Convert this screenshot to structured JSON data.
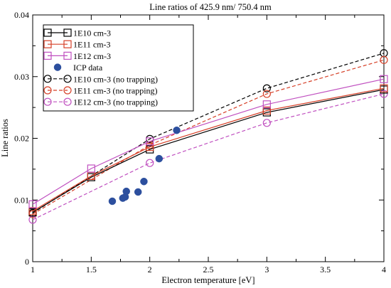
{
  "chart_data": {
    "type": "line",
    "title": "Line ratios of 425.9 nm/ 750.4 nm",
    "xlabel": "Electron temperature [eV]",
    "ylabel": "Line ratios",
    "xlim": [
      1,
      4
    ],
    "ylim": [
      0,
      0.04
    ],
    "x_ticks": [
      1,
      1.5,
      2,
      2.5,
      3,
      3.5,
      4
    ],
    "x_tick_labels": [
      "1",
      "1.5",
      "2",
      "2.5",
      "3",
      "3.5",
      "4"
    ],
    "y_ticks": [
      0,
      0.01,
      0.02,
      0.03,
      0.04
    ],
    "y_tick_labels": [
      "0",
      "0.01",
      "0.02",
      "0.03",
      "0.04"
    ],
    "grid": false,
    "legend_position": "top-left",
    "series": [
      {
        "name": "1E10 cm-3",
        "color": "#000000",
        "line": "solid",
        "marker": "square",
        "x": [
          1,
          1.5,
          2,
          3,
          4
        ],
        "y": [
          0.008,
          0.0137,
          0.0182,
          0.0242,
          0.0279
        ]
      },
      {
        "name": "1E11 cm-3",
        "color": "#d64028",
        "line": "solid",
        "marker": "square",
        "x": [
          1,
          1.5,
          2,
          3,
          4
        ],
        "y": [
          0.0082,
          0.0139,
          0.0186,
          0.0245,
          0.0281
        ]
      },
      {
        "name": "1E12 cm-3",
        "color": "#c050c0",
        "line": "solid",
        "marker": "square",
        "x": [
          1,
          1.5,
          2,
          3,
          4
        ],
        "y": [
          0.0093,
          0.0151,
          0.0195,
          0.0255,
          0.0296
        ]
      },
      {
        "name": "ICP data",
        "color": "#2c4f9e",
        "line": "none",
        "marker": "filled-circle",
        "x": [
          1.68,
          1.77,
          1.79,
          1.8,
          1.9,
          1.95,
          2.08,
          2.23
        ],
        "y": [
          0.0098,
          0.0103,
          0.0105,
          0.0114,
          0.0113,
          0.013,
          0.0167,
          0.0213
        ]
      },
      {
        "name": "1E10 cm-3 (no trapping)",
        "color": "#000000",
        "line": "dashed",
        "marker": "circle",
        "x": [
          1,
          2,
          3,
          4
        ],
        "y": [
          0.0079,
          0.0199,
          0.0281,
          0.0338
        ]
      },
      {
        "name": "1E11 cm-3 (no trapping)",
        "color": "#d64028",
        "line": "dashed",
        "marker": "circle",
        "x": [
          1,
          2,
          3,
          4
        ],
        "y": [
          0.0077,
          0.0189,
          0.0272,
          0.0327
        ]
      },
      {
        "name": "1E12 cm-3 (no trapping)",
        "color": "#c050c0",
        "line": "dashed",
        "marker": "circle",
        "x": [
          1,
          2,
          3,
          4
        ],
        "y": [
          0.0068,
          0.016,
          0.0225,
          0.0272
        ]
      }
    ]
  }
}
